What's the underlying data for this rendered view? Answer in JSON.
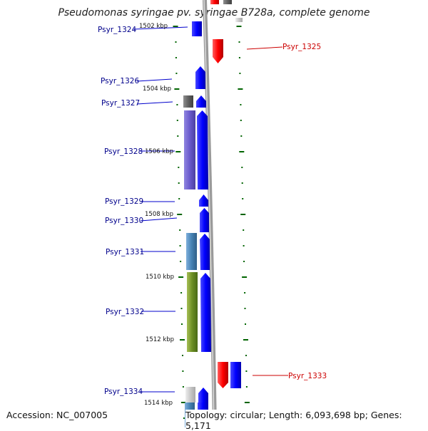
{
  "title": "Pseudomonas syringae pv. syringae B728a, complete genome",
  "footer": {
    "accession": "Accession: NC_007005",
    "summary": "Topology: circular; Length: 6,093,698 bp; Genes: 5,171"
  },
  "colors": {
    "forward_gene": "#0000ff",
    "reverse_gene": "#ff0000",
    "label_blue": "#00008b",
    "label_red": "#cc0000",
    "backbone": "#a0a0a0",
    "tick": "#006400"
  },
  "scale_labels": [
    "1502 kbp",
    "1504 kbp",
    "1506 kbp",
    "1508 kbp",
    "1510 kbp",
    "1512 kbp",
    "1514 kbp"
  ],
  "gene_labels": [
    {
      "text": "Psyr_1324",
      "strand": "forward"
    },
    {
      "text": "Psyr_1325",
      "strand": "reverse"
    },
    {
      "text": "Psyr_1326",
      "strand": "forward"
    },
    {
      "text": "Psyr_1327",
      "strand": "forward"
    },
    {
      "text": "Psyr_1328",
      "strand": "forward"
    },
    {
      "text": "Psyr_1329",
      "strand": "forward"
    },
    {
      "text": "Psyr_1330",
      "strand": "forward"
    },
    {
      "text": "Psyr_1331",
      "strand": "forward"
    },
    {
      "text": "Psyr_1332",
      "strand": "forward"
    },
    {
      "text": "Psyr_1333",
      "strand": "reverse"
    },
    {
      "text": "Psyr_1334",
      "strand": "forward"
    }
  ]
}
